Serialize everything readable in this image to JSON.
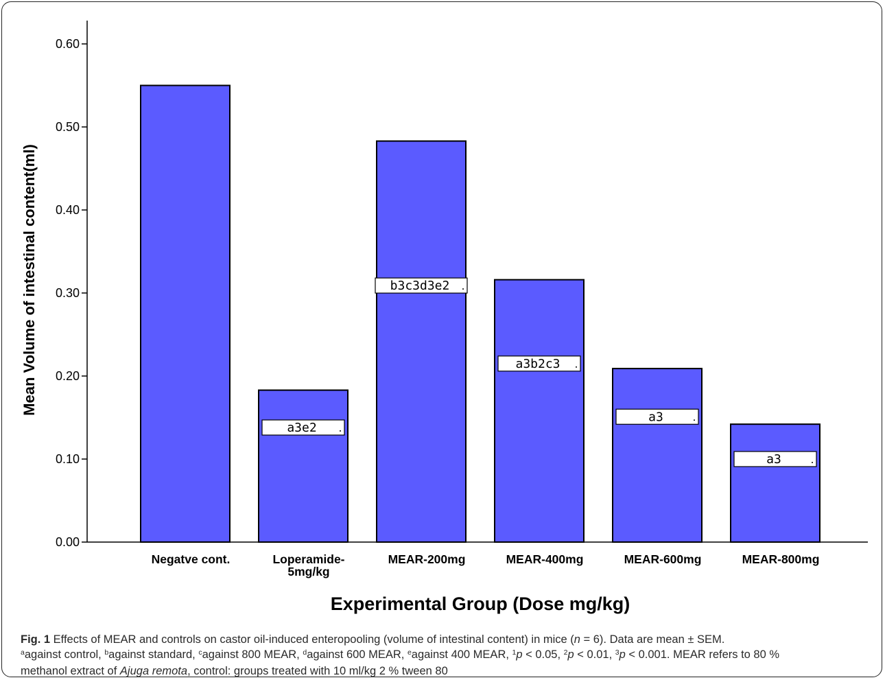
{
  "chart_data": {
    "type": "bar",
    "xlabel": "Experimental Group (Dose mg/kg)",
    "ylabel": "Mean Volume of intestinal content(ml)",
    "ylim": [
      0,
      0.6
    ],
    "yticks": [
      "0.00",
      "0.10",
      "0.20",
      "0.30",
      "0.40",
      "0.50",
      "0.60"
    ],
    "grid": false,
    "categories": [
      [
        "Negatve cont."
      ],
      [
        "Loperamide-",
        "5mg/kg"
      ],
      [
        "MEAR-200mg"
      ],
      [
        "MEAR-400mg"
      ],
      [
        "MEAR-600mg"
      ],
      [
        "MEAR-800mg"
      ]
    ],
    "values": [
      0.55,
      0.183,
      0.483,
      0.316,
      0.209,
      0.142
    ],
    "annotations": [
      "",
      "a3e2",
      "b3c3d3e2",
      "a3b2c3",
      "a3",
      "a3"
    ],
    "annotation_levels": [
      null,
      0.138,
      0.309,
      0.215,
      0.151,
      0.1
    ],
    "bar_color": "#5b5bff",
    "bar_edge_color": "#000000"
  },
  "caption": {
    "fig_label": "Fig. 1",
    "line1": " Effects of MEAR and controls on castor oil-induced enteropooling (volume of intestinal content) in mice (",
    "n_var": "n",
    "n_rest": " = 6). Data are mean ± SEM.",
    "sup_a": "a",
    "t_a": "against control, ",
    "sup_b": "b",
    "t_b": "against standard, ",
    "sup_c": "c",
    "t_c": "against 800 MEAR, ",
    "sup_d": "d",
    "t_d": "against 600 MEAR, ",
    "sup_e": "e",
    "t_e": "against 400 MEAR, ",
    "sup_1": "1",
    "p_var1": "p",
    "t_1": " < 0.05, ",
    "sup_2": "2",
    "p_var2": "p",
    "t_2": " < 0.01, ",
    "sup_3": "3",
    "p_var3": "p",
    "t_3": " < 0.001. MEAR refers to 80 %",
    "line3a": "methanol extract of ",
    "species": "Ajuga remota",
    "line3b": ", control: groups treated with 10 ml/kg 2 % tween 80"
  }
}
